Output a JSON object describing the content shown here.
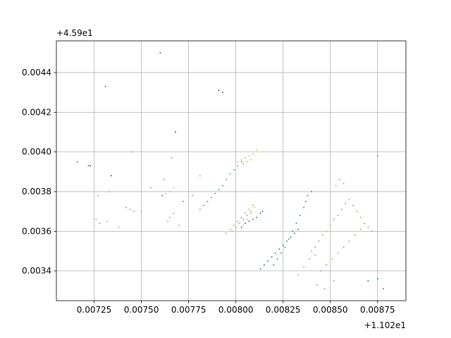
{
  "chart_data": {
    "type": "scatter",
    "title": "",
    "xlabel": "",
    "ylabel": "",
    "x_offset_label": "+1.102e1",
    "y_offset_label": "+4.59e1",
    "x_offset": 11.02,
    "y_offset": 45.9,
    "xlim": [
      0.00705,
      0.0089
    ],
    "ylim": [
      0.00325,
      0.00456
    ],
    "xticks": [
      0.00725,
      0.0075,
      0.00775,
      0.008,
      0.00825,
      0.0085,
      0.00875
    ],
    "xtick_labels": [
      "0.00725",
      "0.00750",
      "0.00775",
      "0.00800",
      "0.00825",
      "0.00850",
      "0.00875"
    ],
    "yticks": [
      0.0034,
      0.0036,
      0.0038,
      0.004,
      0.0042,
      0.0044
    ],
    "ytick_labels": [
      "0.0034",
      "0.0036",
      "0.0038",
      "0.0040",
      "0.0042",
      "0.0044"
    ],
    "grid": true,
    "marker_size": 1,
    "colors": {
      "dark_teal": "#26828e",
      "teal": "#1f9e89",
      "green": "#35b779",
      "light_green": "#6ece58",
      "yellow_green": "#b5de2b",
      "gray": "#555555"
    },
    "series": [
      {
        "color": "#35b779",
        "points": [
          [
            0.00781,
            0.00371
          ],
          [
            0.00783,
            0.00373
          ],
          [
            0.00785,
            0.00375
          ],
          [
            0.00787,
            0.00377
          ],
          [
            0.00789,
            0.00379
          ],
          [
            0.00791,
            0.00381
          ],
          [
            0.00793,
            0.00383
          ],
          [
            0.00795,
            0.00386
          ],
          [
            0.00797,
            0.00389
          ],
          [
            0.00799,
            0.00391
          ],
          [
            0.00801,
            0.00393
          ],
          [
            0.00803,
            0.00395
          ],
          [
            0.00805,
            0.00397
          ]
        ]
      },
      {
        "color": "#6ece58",
        "points": [
          [
            0.00795,
            0.00359
          ],
          [
            0.00797,
            0.00361
          ],
          [
            0.00799,
            0.00363
          ],
          [
            0.00801,
            0.00365
          ],
          [
            0.00803,
            0.00367
          ],
          [
            0.00805,
            0.00369
          ],
          [
            0.00807,
            0.00371
          ],
          [
            0.00809,
            0.00373
          ],
          [
            0.00798,
            0.0036
          ],
          [
            0.008,
            0.00362
          ],
          [
            0.00802,
            0.00364
          ],
          [
            0.00804,
            0.00366
          ],
          [
            0.00806,
            0.00368
          ],
          [
            0.00808,
            0.0037
          ]
        ]
      },
      {
        "color": "#b5de2b",
        "points": [
          [
            0.00801,
            0.00395
          ],
          [
            0.00803,
            0.00396
          ],
          [
            0.00805,
            0.00397
          ],
          [
            0.00807,
            0.00398
          ],
          [
            0.00809,
            0.00399
          ],
          [
            0.00811,
            0.00401
          ],
          [
            0.00804,
            0.00394
          ],
          [
            0.00806,
            0.00395
          ],
          [
            0.00808,
            0.00396
          ],
          [
            0.00804,
            0.00363
          ],
          [
            0.00806,
            0.00366
          ],
          [
            0.00808,
            0.00369
          ],
          [
            0.0081,
            0.00372
          ],
          [
            0.00765,
            0.0038
          ],
          [
            0.00767,
            0.00382
          ],
          [
            0.00763,
            0.00379
          ]
        ]
      },
      {
        "color": "#26828e",
        "points": [
          [
            0.00803,
            0.00362
          ],
          [
            0.00805,
            0.00364
          ],
          [
            0.00807,
            0.00365
          ],
          [
            0.00809,
            0.00366
          ],
          [
            0.00811,
            0.00367
          ],
          [
            0.00813,
            0.00369
          ],
          [
            0.00814,
            0.0037
          ],
          [
            0.00813,
            0.00341
          ],
          [
            0.00815,
            0.00343
          ],
          [
            0.00817,
            0.00345
          ],
          [
            0.00819,
            0.00347
          ],
          [
            0.00821,
            0.00349
          ],
          [
            0.00823,
            0.00351
          ],
          [
            0.00825,
            0.00353
          ],
          [
            0.00827,
            0.00355
          ],
          [
            0.00829,
            0.00357
          ],
          [
            0.00831,
            0.00359
          ],
          [
            0.00833,
            0.00361
          ],
          [
            0.00722,
            0.00393
          ],
          [
            0.0087,
            0.00335
          ],
          [
            0.00875,
            0.00336
          ]
        ]
      },
      {
        "color": "#1f9e89",
        "points": [
          [
            0.0082,
            0.00343
          ],
          [
            0.00822,
            0.00346
          ],
          [
            0.00824,
            0.00349
          ],
          [
            0.00826,
            0.00352
          ],
          [
            0.00828,
            0.00356
          ],
          [
            0.0083,
            0.0036
          ],
          [
            0.00832,
            0.00364
          ],
          [
            0.00834,
            0.00368
          ],
          [
            0.00836,
            0.00372
          ],
          [
            0.00837,
            0.00375
          ],
          [
            0.00838,
            0.00378
          ],
          [
            0.0084,
            0.0038
          ],
          [
            0.00761,
            0.00378
          ],
          [
            0.00772,
            0.00375
          ],
          [
            0.00716,
            0.00395
          ],
          [
            0.00878,
            0.00331
          ],
          [
            0.00875,
            0.00398
          ]
        ]
      },
      {
        "color": "#6ece58",
        "points": [
          [
            0.0084,
            0.0035
          ],
          [
            0.00842,
            0.00352
          ],
          [
            0.00844,
            0.00355
          ],
          [
            0.00846,
            0.00358
          ],
          [
            0.00848,
            0.0036
          ],
          [
            0.0085,
            0.00363
          ],
          [
            0.00852,
            0.00366
          ],
          [
            0.00854,
            0.00368
          ],
          [
            0.00856,
            0.00371
          ],
          [
            0.00858,
            0.00374
          ],
          [
            0.0086,
            0.00376
          ],
          [
            0.00862,
            0.00373
          ],
          [
            0.00864,
            0.0037
          ],
          [
            0.00866,
            0.00367
          ],
          [
            0.00868,
            0.00364
          ],
          [
            0.0087,
            0.00362
          ],
          [
            0.00872,
            0.0036
          ],
          [
            0.00845,
            0.0034
          ],
          [
            0.00848,
            0.00343
          ],
          [
            0.00851,
            0.00346
          ],
          [
            0.00854,
            0.00349
          ],
          [
            0.00857,
            0.00352
          ],
          [
            0.0086,
            0.00355
          ],
          [
            0.00863,
            0.00358
          ],
          [
            0.00866,
            0.00361
          ],
          [
            0.00855,
            0.00386
          ],
          [
            0.00857,
            0.00384
          ],
          [
            0.00853,
            0.00383
          ],
          [
            0.00833,
            0.00338
          ],
          [
            0.00836,
            0.00342
          ],
          [
            0.00839,
            0.00346
          ],
          [
            0.00842,
            0.00348
          ],
          [
            0.00843,
            0.00333
          ],
          [
            0.00847,
            0.00331
          ],
          [
            0.00852,
            0.00335
          ],
          [
            0.00765,
            0.00367
          ],
          [
            0.00767,
            0.00369
          ],
          [
            0.00764,
            0.00365
          ],
          [
            0.00742,
            0.00372
          ],
          [
            0.00744,
            0.00371
          ],
          [
            0.00746,
            0.0037
          ],
          [
            0.00726,
            0.00366
          ],
          [
            0.00728,
            0.00364
          ],
          [
            0.00732,
            0.00365
          ],
          [
            0.00738,
            0.00362
          ],
          [
            0.0075,
            0.0037
          ],
          [
            0.00755,
            0.00382
          ],
          [
            0.00762,
            0.00386
          ],
          [
            0.00777,
            0.00378
          ],
          [
            0.00781,
            0.00388
          ],
          [
            0.0077,
            0.00363
          ],
          [
            0.00727,
            0.00378
          ],
          [
            0.00733,
            0.0038
          ],
          [
            0.00745,
            0.004
          ],
          [
            0.00766,
            0.00397
          ]
        ]
      },
      {
        "color": "#555555",
        "points": [
          [
            0.00723,
            0.00393
          ],
          [
            0.00731,
            0.00433
          ],
          [
            0.0076,
            0.0045
          ],
          [
            0.00791,
            0.00431
          ],
          [
            0.00793,
            0.0043
          ],
          [
            0.00734,
            0.00388
          ],
          [
            0.00768,
            0.0041
          ]
        ]
      }
    ]
  }
}
